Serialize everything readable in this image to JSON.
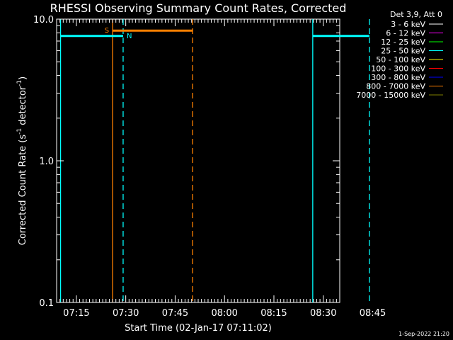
{
  "chart_data": {
    "type": "line",
    "title": "RHESSI Observing Summary Count Rates, Corrected",
    "xlabel": "Start Time (02-Jan-17 07:11:02)",
    "ylabel_main": "Corrected Count Rate (s",
    "ylabel_sup1": "-1",
    "ylabel_mid": " detector",
    "ylabel_sup2": "-1",
    "ylabel_end": ")",
    "yscale": "log",
    "ylim": [
      0.1,
      10.0
    ],
    "y_ticks": [
      {
        "value": 0.1,
        "label": "0.1"
      },
      {
        "value": 1.0,
        "label": "1.0"
      },
      {
        "value": 10.0,
        "label": "10.0"
      }
    ],
    "xlim_min": [
      8.0,
      94.0
    ],
    "x_ticks": [
      {
        "min": 14,
        "label": "07:15"
      },
      {
        "min": 29,
        "label": "07:30"
      },
      {
        "min": 44,
        "label": "07:45"
      },
      {
        "min": 59,
        "label": "08:00"
      },
      {
        "min": 74,
        "label": "08:15"
      },
      {
        "min": 89,
        "label": "08:30"
      },
      {
        "min": 104,
        "label": "08:45"
      }
    ],
    "legend": {
      "header": "Det 3,9, Att 0",
      "items": [
        {
          "label": "3 - 6 keV",
          "color": "#ffffff"
        },
        {
          "label": "6 - 12 keV",
          "color": "#ff00ff"
        },
        {
          "label": "12 - 25 keV",
          "color": "#00ff00"
        },
        {
          "label": "25 - 50 keV",
          "color": "#00ffff"
        },
        {
          "label": "50 - 100 keV",
          "color": "#ffff00"
        },
        {
          "label": "100 - 300 keV",
          "color": "#ff0000"
        },
        {
          "label": "300 - 800 keV",
          "color": "#0000ff"
        },
        {
          "label": "800 - 7000 keV",
          "color": "#ff8000"
        },
        {
          "label": "7000 - 15000 keV",
          "color": "#808000"
        }
      ]
    },
    "series": [
      {
        "name": "25 - 50 keV",
        "color": "#00ffff",
        "segments": [
          [
            [
              9.2,
              7.6
            ],
            [
              28.2,
              7.6
            ]
          ],
          [
            [
              85.8,
              7.6
            ],
            [
              103.0,
              7.6
            ]
          ]
        ]
      },
      {
        "name": "800 - 7000 keV",
        "color": "#ff8000",
        "segments": [
          [
            [
              25.0,
              8.3
            ],
            [
              49.3,
              8.3
            ]
          ]
        ]
      }
    ],
    "vlines": [
      {
        "min": 9.2,
        "color": "#00ffff",
        "style": "solid"
      },
      {
        "min": 25.0,
        "color": "#ff8000",
        "style": "solid"
      },
      {
        "min": 28.2,
        "color": "#00ffff",
        "style": "dashed"
      },
      {
        "min": 49.3,
        "color": "#ff8000",
        "style": "dashed"
      },
      {
        "min": 85.8,
        "color": "#00ffff",
        "style": "solid"
      },
      {
        "min": 103.0,
        "color": "#00ffff",
        "style": "dashed"
      }
    ],
    "markers": [
      {
        "text": "S",
        "min": 25.0,
        "y": 8.3,
        "color": "#ff8000",
        "side": "left"
      },
      {
        "text": "N",
        "min": 28.2,
        "y": 7.6,
        "color": "#00ffff",
        "side": "right"
      }
    ],
    "timestamp": "1-Sep-2022 21:20"
  }
}
